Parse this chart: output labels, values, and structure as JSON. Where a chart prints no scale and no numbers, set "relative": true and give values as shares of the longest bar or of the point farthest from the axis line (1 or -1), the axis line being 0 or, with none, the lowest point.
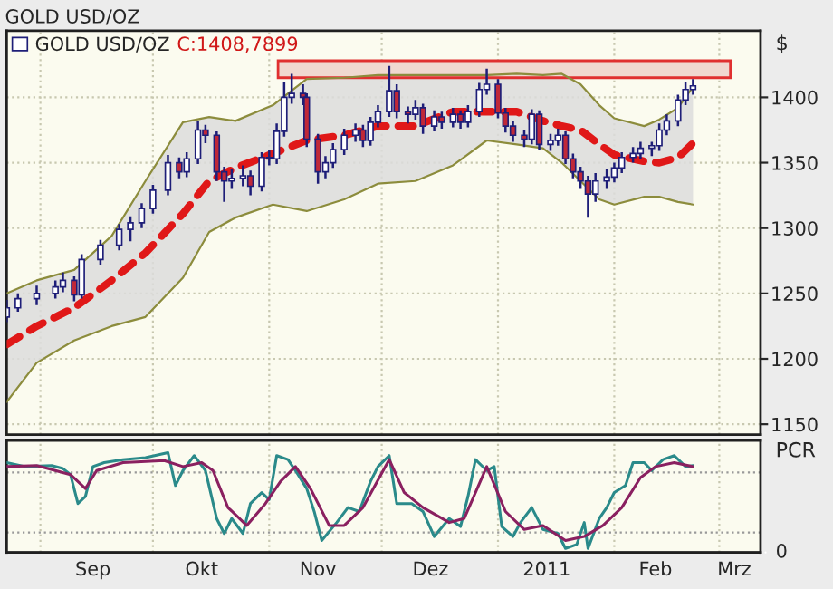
{
  "chart_data": [
    {
      "type": "candlestick",
      "title": "GOLD USD/OZ",
      "ylabel": "$",
      "legend": "top left",
      "grid": true,
      "tick_labels": "y",
      "annotations": [
        "C:1408,7899"
      ],
      "xlim": [
        "2010-08-23",
        "2011-03-12"
      ],
      "ylim": [
        1142,
        1451
      ],
      "yticks": [
        1150,
        1200,
        1250,
        1300,
        1350,
        1400
      ],
      "xticks": [
        {
          "value": "2010-09-01",
          "label": null
        },
        {
          "value": "2010-10-01",
          "label": null
        },
        {
          "value": "2010-11-01",
          "label": null
        },
        {
          "value": "2010-12-01",
          "label": null
        },
        {
          "value": "2011-01-01",
          "label": null
        },
        {
          "value": "2011-02-01",
          "label": null
        },
        {
          "value": "2011-03-01",
          "label": null
        }
      ],
      "bands": [
        {
          "axis": "y",
          "from": 1415,
          "to": 1428,
          "color": "#e03030"
        }
      ],
      "series": [
        {
          "type": "candlestick",
          "name": "GOLD USD/OZ",
          "color": "#1e1e78",
          "x": [
            "2010-08-23",
            "2010-08-26",
            "2010-08-31",
            "2010-09-05",
            "2010-09-07",
            "2010-09-10",
            "2010-09-12",
            "2010-09-17",
            "2010-09-22",
            "2010-09-25",
            "2010-09-28",
            "2010-10-01",
            "2010-10-05",
            "2010-10-08",
            "2010-10-10",
            "2010-10-13",
            "2010-10-15",
            "2010-10-18",
            "2010-10-20",
            "2010-10-22",
            "2010-10-25",
            "2010-10-27",
            "2010-10-30",
            "2010-11-01",
            "2010-11-03",
            "2010-11-05",
            "2010-11-07",
            "2010-11-10",
            "2010-11-11",
            "2010-11-14",
            "2010-11-16",
            "2010-11-18",
            "2010-11-21",
            "2010-11-24",
            "2010-11-26",
            "2010-11-28",
            "2010-11-30",
            "2010-12-03",
            "2010-12-05",
            "2010-12-08",
            "2010-12-10",
            "2010-12-12",
            "2010-12-15",
            "2010-12-17",
            "2010-12-20",
            "2010-12-22",
            "2010-12-24",
            "2010-12-27",
            "2010-12-29",
            "2011-01-01",
            "2011-01-03",
            "2011-01-05",
            "2011-01-08",
            "2011-01-10",
            "2011-01-12",
            "2011-01-15",
            "2011-01-17",
            "2011-01-19",
            "2011-01-21",
            "2011-01-23",
            "2011-01-25",
            "2011-01-27",
            "2011-01-30",
            "2011-02-01",
            "2011-02-03",
            "2011-02-06",
            "2011-02-08",
            "2011-02-11",
            "2011-02-13",
            "2011-02-15",
            "2011-02-18",
            "2011-02-20",
            "2011-02-22"
          ],
          "ohlc": [
            [
              1232,
              1245,
              1228,
              1239
            ],
            [
              1239,
              1250,
              1236,
              1246
            ],
            [
              1246,
              1256,
              1241,
              1250
            ],
            [
              1250,
              1260,
              1246,
              1255
            ],
            [
              1255,
              1266,
              1251,
              1260
            ],
            [
              1260,
              1263,
              1244,
              1249
            ],
            [
              1249,
              1280,
              1246,
              1276
            ],
            [
              1276,
              1291,
              1272,
              1287
            ],
            [
              1287,
              1303,
              1283,
              1299
            ],
            [
              1299,
              1309,
              1290,
              1304
            ],
            [
              1304,
              1319,
              1300,
              1315
            ],
            [
              1315,
              1333,
              1311,
              1329
            ],
            [
              1329,
              1356,
              1325,
              1350
            ],
            [
              1350,
              1354,
              1338,
              1343
            ],
            [
              1343,
              1358,
              1339,
              1353
            ],
            [
              1353,
              1382,
              1349,
              1375
            ],
            [
              1375,
              1379,
              1365,
              1371
            ],
            [
              1371,
              1374,
              1336,
              1343
            ],
            [
              1343,
              1347,
              1320,
              1336
            ],
            [
              1336,
              1345,
              1330,
              1338
            ],
            [
              1338,
              1348,
              1332,
              1340
            ],
            [
              1340,
              1344,
              1325,
              1332
            ],
            [
              1332,
              1358,
              1328,
              1354
            ],
            [
              1354,
              1360,
              1348,
              1353
            ],
            [
              1353,
              1380,
              1349,
              1374
            ],
            [
              1374,
              1412,
              1370,
              1400
            ],
            [
              1400,
              1418,
              1395,
              1403
            ],
            [
              1403,
              1410,
              1394,
              1400
            ],
            [
              1400,
              1403,
              1362,
              1368
            ],
            [
              1368,
              1372,
              1334,
              1343
            ],
            [
              1343,
              1355,
              1338,
              1350
            ],
            [
              1350,
              1365,
              1346,
              1360
            ],
            [
              1360,
              1376,
              1356,
              1371
            ],
            [
              1371,
              1380,
              1366,
              1375
            ],
            [
              1375,
              1379,
              1362,
              1367
            ],
            [
              1367,
              1385,
              1363,
              1381
            ],
            [
              1381,
              1394,
              1377,
              1389
            ],
            [
              1389,
              1424,
              1385,
              1405
            ],
            [
              1405,
              1410,
              1384,
              1389
            ],
            [
              1389,
              1393,
              1380,
              1387
            ],
            [
              1387,
              1398,
              1383,
              1392
            ],
            [
              1392,
              1395,
              1372,
              1378
            ],
            [
              1378,
              1390,
              1374,
              1385
            ],
            [
              1385,
              1389,
              1376,
              1381
            ],
            [
              1381,
              1392,
              1377,
              1387
            ],
            [
              1387,
              1390,
              1376,
              1381
            ],
            [
              1381,
              1394,
              1377,
              1389
            ],
            [
              1389,
              1411,
              1385,
              1406
            ],
            [
              1406,
              1422,
              1402,
              1410
            ],
            [
              1410,
              1414,
              1384,
              1388
            ],
            [
              1388,
              1392,
              1373,
              1378
            ],
            [
              1378,
              1382,
              1366,
              1371
            ],
            [
              1371,
              1375,
              1362,
              1368
            ],
            [
              1368,
              1391,
              1364,
              1387
            ],
            [
              1387,
              1390,
              1360,
              1364
            ],
            [
              1364,
              1372,
              1359,
              1367
            ],
            [
              1367,
              1376,
              1363,
              1371
            ],
            [
              1371,
              1374,
              1349,
              1353
            ],
            [
              1353,
              1357,
              1338,
              1343
            ],
            [
              1343,
              1347,
              1330,
              1336
            ],
            [
              1336,
              1340,
              1308,
              1326
            ],
            [
              1326,
              1342,
              1320,
              1336
            ],
            [
              1336,
              1345,
              1330,
              1339
            ],
            [
              1339,
              1350,
              1335,
              1346
            ],
            [
              1346,
              1358,
              1342,
              1354
            ],
            [
              1354,
              1362,
              1350,
              1357
            ],
            [
              1357,
              1366,
              1353,
              1361
            ],
            [
              1361,
              1366,
              1355,
              1363
            ],
            [
              1363,
              1380,
              1359,
              1375
            ],
            [
              1375,
              1387,
              1371,
              1382
            ],
            [
              1382,
              1402,
              1378,
              1398
            ],
            [
              1398,
              1412,
              1394,
              1406
            ],
            [
              1406,
              1414,
              1402,
              1408.7899
            ]
          ]
        },
        {
          "type": "line",
          "color": "#e01818",
          "line_style": "dashed",
          "x": [
            "2010-08-23",
            "2010-08-31",
            "2010-09-10",
            "2010-09-20",
            "2010-09-29",
            "2010-10-09",
            "2010-10-16",
            "2010-10-23",
            "2010-11-02",
            "2010-11-11",
            "2010-11-21",
            "2010-11-30",
            "2010-12-10",
            "2010-12-20",
            "2010-12-29",
            "2011-01-06",
            "2011-01-13",
            "2011-01-18",
            "2011-01-23",
            "2011-01-28",
            "2011-02-01",
            "2011-02-09",
            "2011-02-13",
            "2011-02-18",
            "2011-02-22"
          ],
          "values": [
            1211,
            1225,
            1239,
            1260,
            1281,
            1311,
            1336,
            1346,
            1357,
            1367,
            1371,
            1378,
            1378,
            1389,
            1389,
            1389,
            1382,
            1378,
            1375,
            1364,
            1356,
            1351,
            1350,
            1354,
            1365
          ],
          "upper": [
            1250,
            1260,
            1268,
            1294,
            1336,
            1381,
            1385,
            1382,
            1394,
            1414,
            1415,
            1417,
            1417,
            1417,
            1417,
            1418,
            1417,
            1418,
            1410,
            1394,
            1384,
            1378,
            1383,
            1392,
            1408
          ],
          "lower": [
            1167,
            1197,
            1214,
            1225,
            1232,
            1262,
            1297,
            1308,
            1318,
            1313,
            1322,
            1334,
            1336,
            1348,
            1367,
            1364,
            1361,
            1350,
            1336,
            1322,
            1318,
            1324,
            1324,
            1320,
            1318
          ]
        },
        {
          "type": "line",
          "color": "#8c8c3c",
          "x": [
            "2010-08-23",
            "2010-08-31",
            "2010-09-10",
            "2010-09-20",
            "2010-09-29",
            "2010-10-09",
            "2010-10-16",
            "2010-10-23",
            "2010-11-02",
            "2010-11-11",
            "2010-11-21",
            "2010-11-30",
            "2010-12-10",
            "2010-12-20",
            "2010-12-29",
            "2011-01-06",
            "2011-01-13",
            "2011-01-18",
            "2011-01-23",
            "2011-01-28",
            "2011-02-01",
            "2011-02-09",
            "2011-02-13",
            "2011-02-18",
            "2011-02-22"
          ],
          "values": [
            1250,
            1260,
            1268,
            1294,
            1336,
            1381,
            1385,
            1382,
            1394,
            1414,
            1415,
            1417,
            1417,
            1417,
            1417,
            1418,
            1417,
            1418,
            1410,
            1394,
            1384,
            1378,
            1383,
            1392,
            1408
          ]
        },
        {
          "type": "line",
          "color": "#8c8c3c",
          "x": [
            "2010-08-23",
            "2010-08-31",
            "2010-09-10",
            "2010-09-20",
            "2010-09-29",
            "2010-10-09",
            "2010-10-16",
            "2010-10-23",
            "2010-11-02",
            "2010-11-11",
            "2010-11-21",
            "2010-11-30",
            "2010-12-10",
            "2010-12-20",
            "2010-12-29",
            "2011-01-06",
            "2011-01-13",
            "2011-01-18",
            "2011-01-23",
            "2011-01-28",
            "2011-02-01",
            "2011-02-09",
            "2011-02-13",
            "2011-02-18",
            "2011-02-22"
          ],
          "values": [
            1167,
            1197,
            1214,
            1225,
            1232,
            1262,
            1297,
            1308,
            1318,
            1313,
            1322,
            1334,
            1336,
            1348,
            1367,
            1364,
            1361,
            1350,
            1336,
            1322,
            1318,
            1324,
            1324,
            1320,
            1318
          ]
        }
      ]
    },
    {
      "type": "line",
      "relative": true,
      "ylabel": "PCR",
      "grid": true,
      "tick_labels": "x",
      "xlim": [
        "2010-08-23",
        "2011-03-12"
      ],
      "xticks": [
        {
          "value": "2010-09-01",
          "label": null
        },
        {
          "value": "2010-09-15",
          "label": "Sep"
        },
        {
          "value": "2010-10-01",
          "label": null
        },
        {
          "value": "2010-10-14",
          "label": "Okt"
        },
        {
          "value": "2010-11-01",
          "label": null
        },
        {
          "value": "2010-11-14",
          "label": "Nov"
        },
        {
          "value": "2010-12-01",
          "label": null
        },
        {
          "value": "2010-12-14",
          "label": "Dez"
        },
        {
          "value": "2011-01-01",
          "label": null
        },
        {
          "value": "2011-01-14",
          "label": "2011"
        },
        {
          "value": "2011-02-01",
          "label": null
        },
        {
          "value": "2011-02-12",
          "label": "Feb"
        },
        {
          "value": "2011-03-01",
          "label": null
        },
        {
          "value": "2011-03-05",
          "label": "Mrz"
        }
      ],
      "ref_lines": [
        {
          "axis": "y",
          "value": 0.8,
          "line_style": "dotted",
          "color": "#999999"
        },
        {
          "axis": "y",
          "value": 0.2,
          "line_style": "dotted",
          "color": "#999999"
        },
        {
          "axis": "y",
          "value": 0,
          "label": "0",
          "line_style": "solid",
          "color": "#202020"
        }
      ],
      "series": [
        {
          "color": "#2a8a8a",
          "x": [
            "2010-08-23",
            "2010-08-28",
            "2010-09-04",
            "2010-09-07",
            "2010-09-09",
            "2010-09-11",
            "2010-09-13",
            "2010-09-15",
            "2010-09-18",
            "2010-09-23",
            "2010-09-29",
            "2010-10-05",
            "2010-10-07",
            "2010-10-09",
            "2010-10-12",
            "2010-10-15",
            "2010-10-18",
            "2010-10-20",
            "2010-10-22",
            "2010-10-25",
            "2010-10-27",
            "2010-10-30",
            "2010-11-01",
            "2010-11-03",
            "2010-11-06",
            "2010-11-08",
            "2010-11-11",
            "2010-11-13",
            "2010-11-15",
            "2010-11-19",
            "2010-11-22",
            "2010-11-25",
            "2010-11-28",
            "2010-11-30",
            "2010-12-03",
            "2010-12-05",
            "2010-12-09",
            "2010-12-12",
            "2010-12-15",
            "2010-12-19",
            "2010-12-22",
            "2010-12-24",
            "2010-12-26",
            "2010-12-29",
            "2010-12-31",
            "2011-01-02",
            "2011-01-05",
            "2011-01-07",
            "2011-01-10",
            "2011-01-13",
            "2011-01-17",
            "2011-01-19",
            "2011-01-22",
            "2011-01-24",
            "2011-01-25",
            "2011-01-28",
            "2011-01-30",
            "2011-02-01",
            "2011-02-04",
            "2011-02-06",
            "2011-02-09",
            "2011-02-11",
            "2011-02-14",
            "2011-02-17",
            "2011-02-20",
            "2011-02-22"
          ],
          "values": [
            0.9,
            0.86,
            0.87,
            0.84,
            0.78,
            0.49,
            0.56,
            0.86,
            0.9,
            0.93,
            0.95,
            1.0,
            0.67,
            0.82,
            0.97,
            0.82,
            0.34,
            0.19,
            0.34,
            0.19,
            0.49,
            0.6,
            0.53,
            0.97,
            0.93,
            0.82,
            0.64,
            0.41,
            0.12,
            0.3,
            0.45,
            0.41,
            0.71,
            0.86,
            0.97,
            0.49,
            0.49,
            0.41,
            0.16,
            0.34,
            0.26,
            0.56,
            0.93,
            0.82,
            0.86,
            0.26,
            0.16,
            0.3,
            0.45,
            0.23,
            0.19,
            0.04,
            0.08,
            0.3,
            0.04,
            0.34,
            0.45,
            0.6,
            0.67,
            0.9,
            0.9,
            0.82,
            0.93,
            0.97,
            0.86,
            0.87
          ]
        },
        {
          "color": "#8a2060",
          "x": [
            "2010-08-23",
            "2010-08-31",
            "2010-09-09",
            "2010-09-13",
            "2010-09-16",
            "2010-09-23",
            "2010-10-04",
            "2010-10-09",
            "2010-10-14",
            "2010-10-17",
            "2010-10-21",
            "2010-10-26",
            "2010-10-31",
            "2010-11-04",
            "2010-11-08",
            "2010-11-12",
            "2010-11-17",
            "2010-11-21",
            "2010-11-26",
            "2010-12-03",
            "2010-12-07",
            "2010-12-12",
            "2010-12-19",
            "2010-12-23",
            "2010-12-29",
            "2011-01-03",
            "2011-01-08",
            "2011-01-13",
            "2011-01-19",
            "2011-01-24",
            "2011-01-29",
            "2011-02-03",
            "2011-02-08",
            "2011-02-12",
            "2011-02-17",
            "2011-02-22"
          ],
          "values": [
            0.86,
            0.87,
            0.78,
            0.64,
            0.82,
            0.9,
            0.92,
            0.86,
            0.9,
            0.82,
            0.45,
            0.27,
            0.49,
            0.71,
            0.86,
            0.64,
            0.27,
            0.27,
            0.45,
            0.93,
            0.6,
            0.45,
            0.3,
            0.34,
            0.86,
            0.41,
            0.23,
            0.27,
            0.12,
            0.16,
            0.27,
            0.45,
            0.75,
            0.86,
            0.9,
            0.86
          ]
        }
      ]
    }
  ]
}
